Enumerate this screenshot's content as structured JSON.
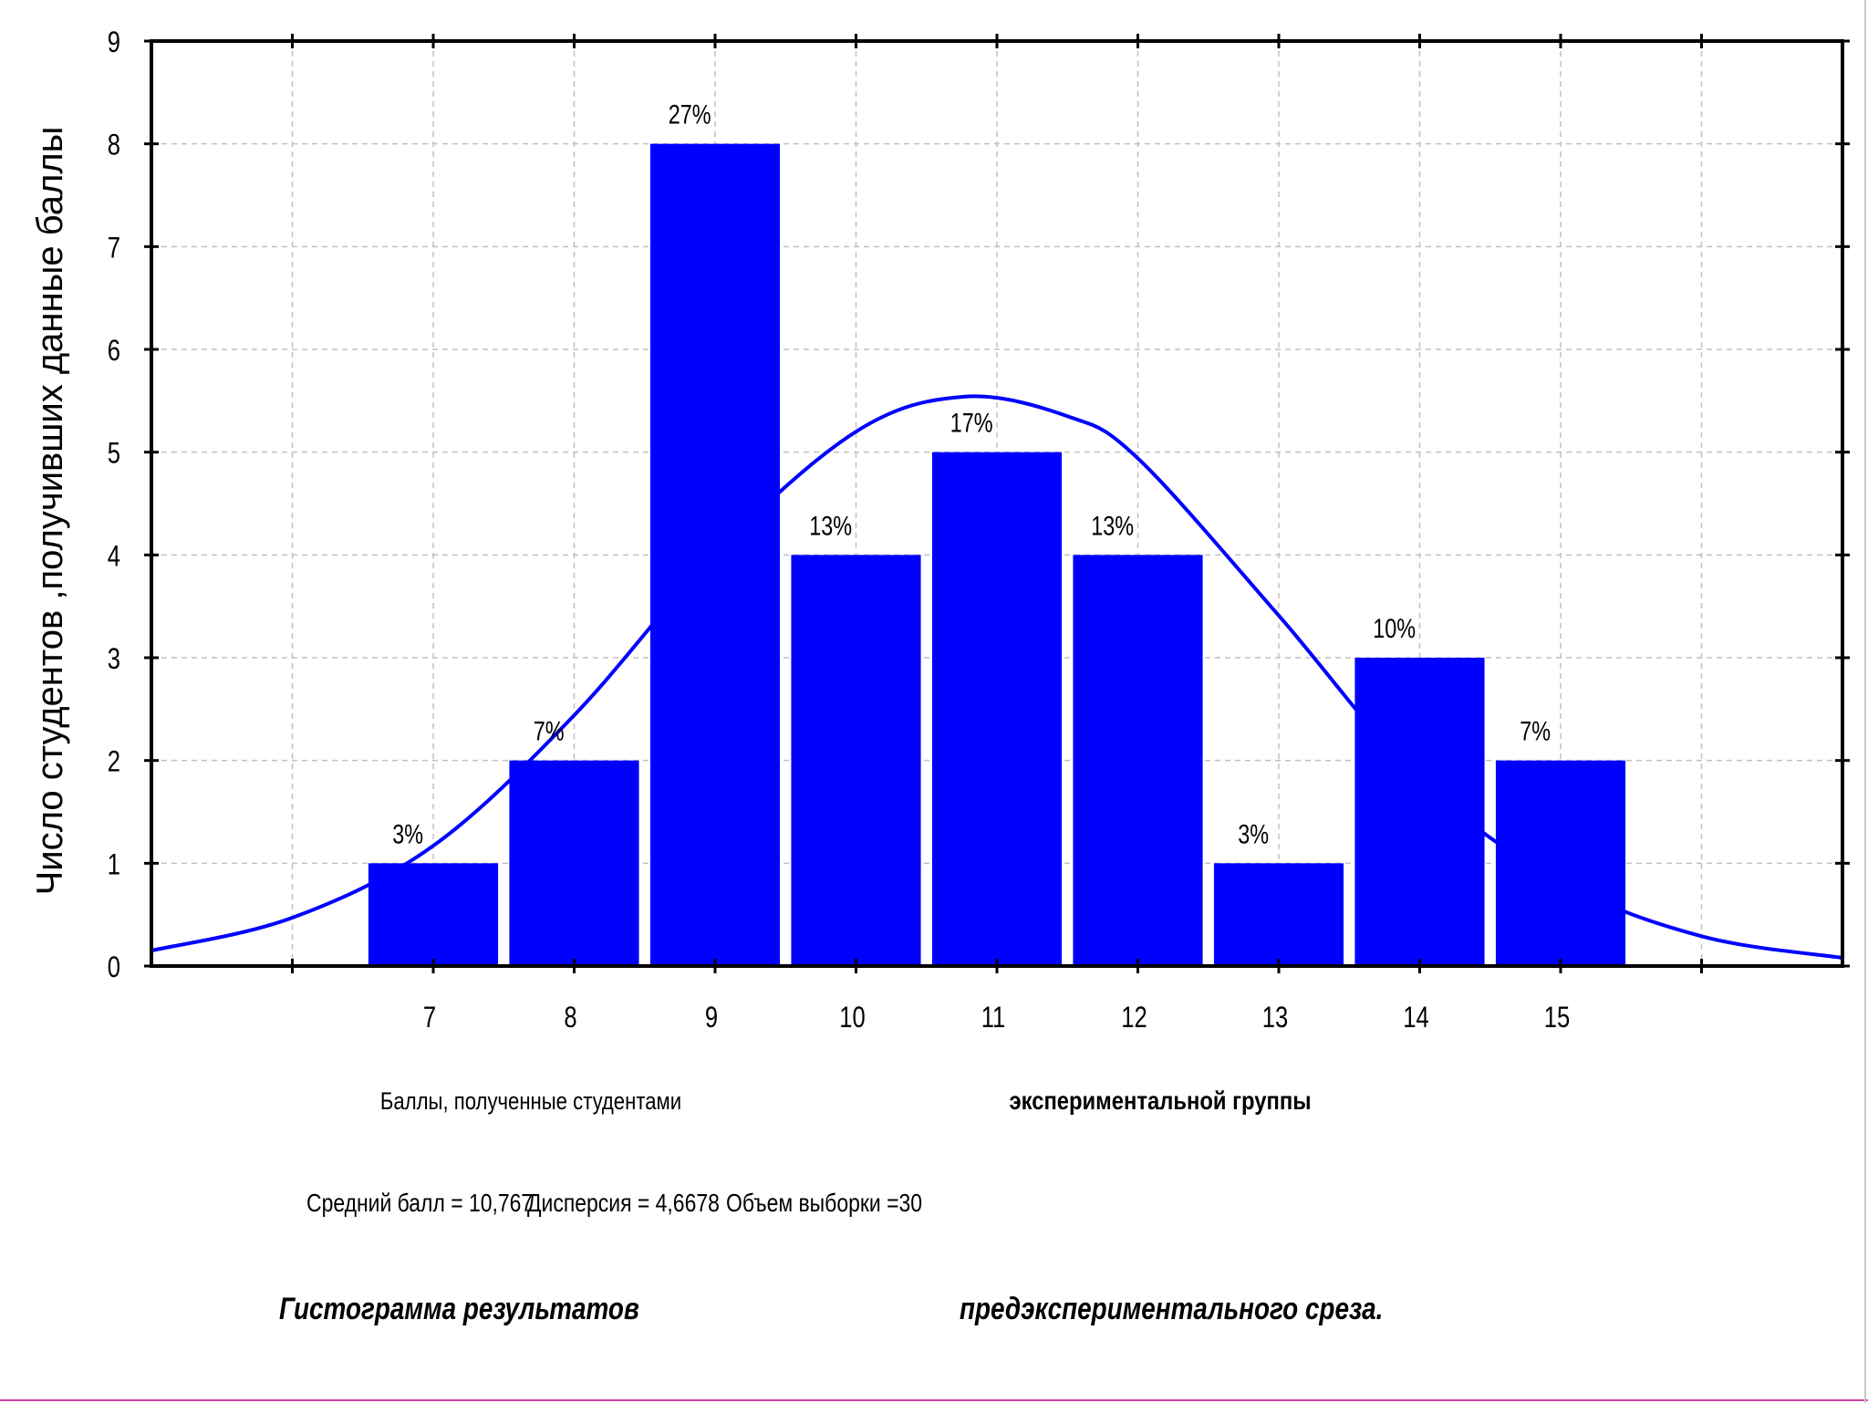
{
  "chart_data": {
    "type": "bar",
    "categories": [
      "7",
      "8",
      "9",
      "10",
      "11",
      "12",
      "13",
      "14",
      "15"
    ],
    "values": [
      1,
      2,
      8,
      4,
      5,
      4,
      1,
      3,
      2
    ],
    "data_labels": [
      "3%",
      "7%",
      "27%",
      "13%",
      "17%",
      "13%",
      "3%",
      "10%",
      "7%"
    ],
    "ylabel": "Число студентов ,получивших данные баллы",
    "xlabel_left": "Баллы, полученные студентами",
    "xlabel_right": "экспериментальной группы",
    "ylim": [
      0,
      9
    ],
    "xlim": [
      5,
      17
    ],
    "yticks": [
      "0",
      "1",
      "2",
      "3",
      "4",
      "5",
      "6",
      "7",
      "8",
      "9"
    ],
    "grid": true,
    "bar_color": "#0000ff",
    "curve_color": "#0000ff",
    "normal_curve": {
      "mean": 10.767,
      "variance": 4.6678,
      "n": 30,
      "x": [
        5.0,
        6.0,
        7.0,
        8.0,
        9.0,
        10.0,
        10.767,
        11.5,
        12.0,
        13.0,
        14.0,
        15.0,
        16.0,
        17.0
      ],
      "y": [
        0.15,
        0.47,
        1.17,
        2.44,
        4.01,
        5.2,
        5.54,
        5.35,
        4.94,
        3.41,
        1.81,
        0.82,
        0.29,
        0.08
      ]
    },
    "stats": {
      "mean_text": "Средний балл = 10,767",
      "variance_text": "Дисперсия  = 4,6678",
      "sample_text": "Объем выборки =30"
    },
    "caption_left": "Гистограмма результатов",
    "caption_right": "предэкспериментального среза."
  },
  "colors": {
    "bottom_border": "#d040a0",
    "right_border": "#c8c8c8"
  }
}
